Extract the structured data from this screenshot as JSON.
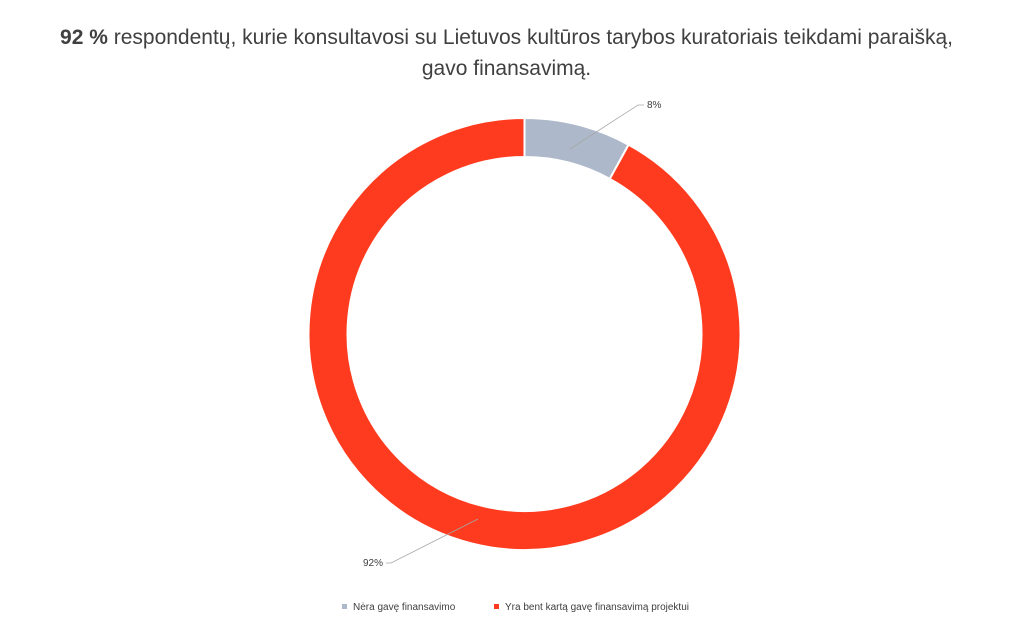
{
  "title": {
    "lead": "92 %",
    "rest": " respondentų, kurie konsultavosi su Lietuvos kultūros tarybos kuratoriais teikdami paraišką,",
    "line2": "gavo finansavimą."
  },
  "chart_data": {
    "type": "pie",
    "variant": "doughnut",
    "slices": [
      {
        "name": "Nėra gavę finansavimo",
        "value": 8,
        "label": "8%",
        "color": "#ADB9CA"
      },
      {
        "name": "Yra bent kartą gavę finansavimą projektui",
        "value": 92,
        "label": "92%",
        "color": "#FF3B1F"
      }
    ],
    "legend_position": "bottom"
  }
}
